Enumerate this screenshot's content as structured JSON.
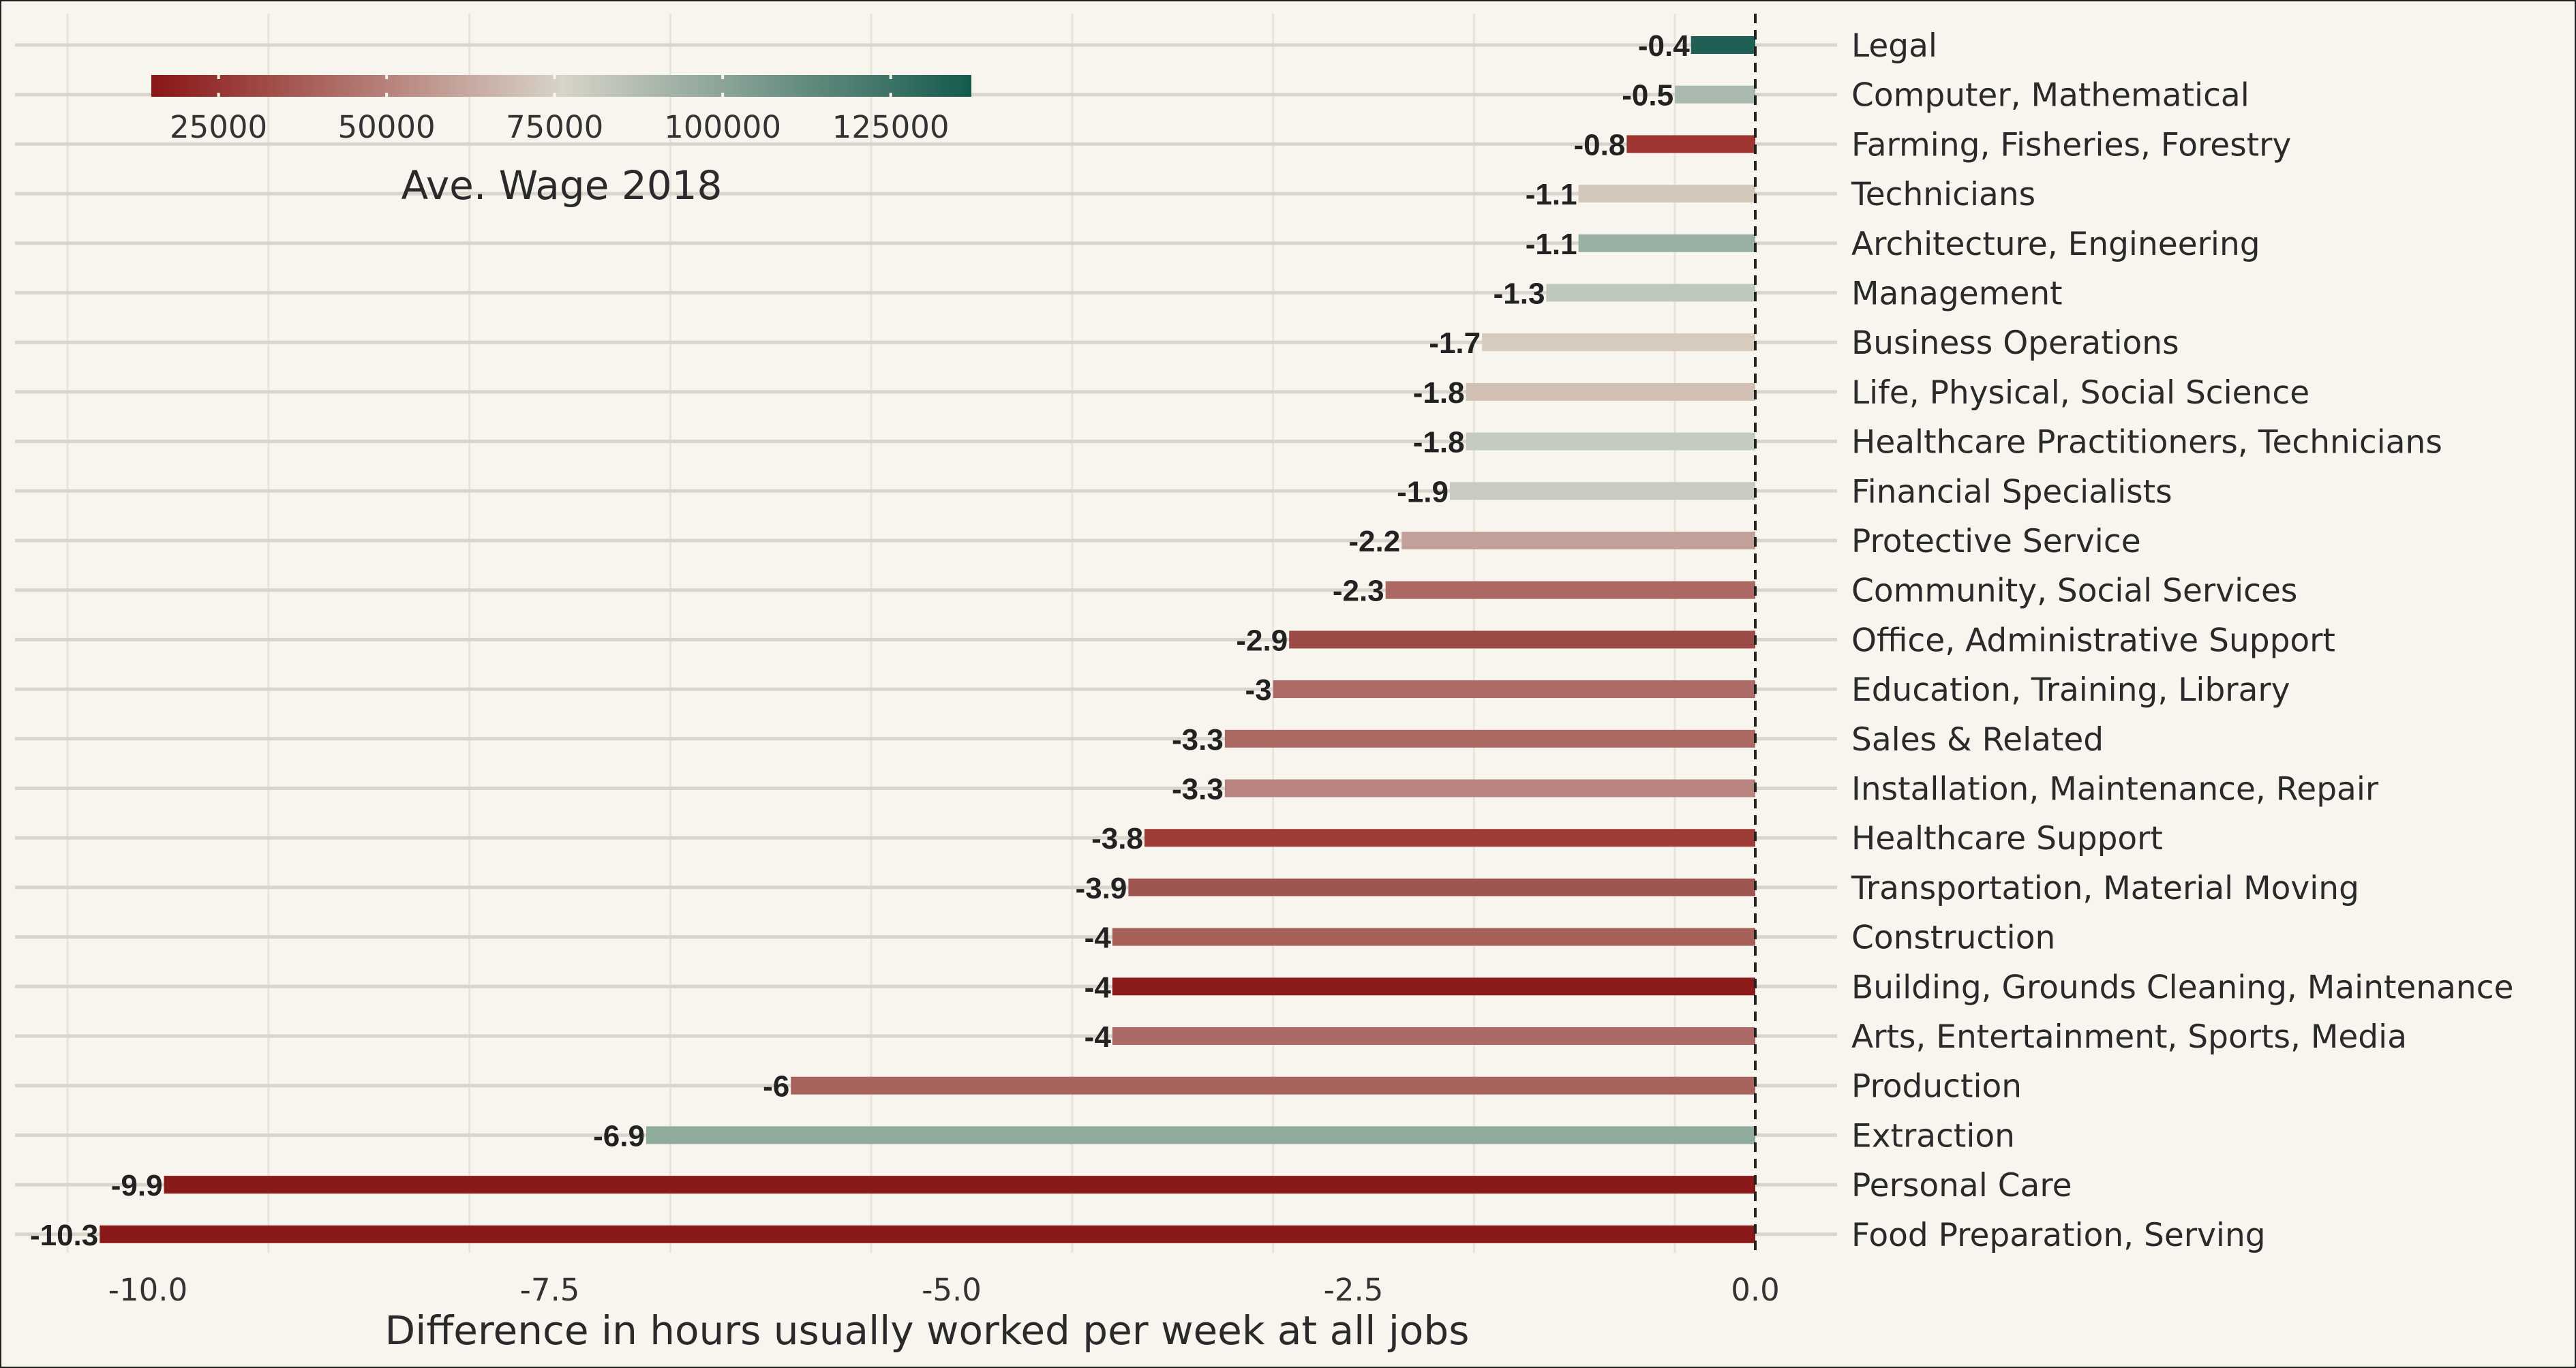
{
  "chart_data": {
    "type": "bar",
    "orientation": "horizontal",
    "title": "",
    "xlabel": "Difference in hours usually worked per week at all jobs",
    "ylabel": "",
    "xlim": [
      -10.5,
      0.4
    ],
    "x_ticks": [
      -10.0,
      -7.5,
      -5.0,
      -2.5,
      0.0
    ],
    "x_tick_labels": [
      "-10.0",
      "-7.5",
      "-5.0",
      "-2.5",
      "0.0"
    ],
    "grid": true,
    "zero_line": "dashed",
    "categories": [
      "Legal",
      "Computer, Mathematical",
      "Farming, Fisheries, Forestry",
      "Technicians",
      "Architecture, Engineering",
      "Management",
      "Business Operations",
      "Life, Physical, Social Science",
      "Healthcare Practitioners, Technicians",
      "Financial Specialists",
      "Protective Service",
      "Community, Social Services",
      "Office, Administrative Support",
      "Education, Training, Library",
      "Sales & Related",
      "Installation, Maintenance, Repair",
      "Healthcare Support",
      "Transportation, Material Moving",
      "Construction",
      "Building, Grounds Cleaning, Maintenance",
      "Arts, Entertainment, Sports, Media",
      "Production",
      "Extraction",
      "Personal Care",
      "Food Preparation, Serving"
    ],
    "values": [
      -0.4,
      -0.5,
      -0.8,
      -1.1,
      -1.1,
      -1.3,
      -1.7,
      -1.8,
      -1.8,
      -1.9,
      -2.2,
      -2.3,
      -2.9,
      -3,
      -3.3,
      -3.3,
      -3.8,
      -3.9,
      -4,
      -4,
      -4,
      -6,
      -6.9,
      -9.9,
      -10.3
    ],
    "value_labels": [
      "-0.4",
      "-0.5",
      "-0.8",
      "-1.1",
      "-1.1",
      "-1.3",
      "-1.7",
      "-1.8",
      "-1.8",
      "-1.9",
      "-2.2",
      "-2.3",
      "-2.9",
      "-3",
      "-3.3",
      "-3.3",
      "-3.8",
      "-3.9",
      "-4",
      "-4",
      "-4",
      "-6",
      "-6.9",
      "-9.9",
      "-10.3"
    ],
    "colors": [
      "#1f5f55",
      "#a9b9ae",
      "#9e3530",
      "#d4c8bb",
      "#9bb0a4",
      "#bfc8bd",
      "#d6cbbd",
      "#d1c0b3",
      "#c5cbc0",
      "#c9cbc0",
      "#c4a09a",
      "#ac6964",
      "#9b4a45",
      "#ac6b66",
      "#ac6964",
      "#b9847f",
      "#9d3c37",
      "#9f5650",
      "#a75f5a",
      "#8c1c1c",
      "#ab6a65",
      "#a9635e",
      "#8fab9b",
      "#8a1a1a",
      "#8a1a1a"
    ],
    "legend": {
      "title": "Ave. Wage 2018",
      "placement": "top-left",
      "colormap": [
        "#8a1515",
        "#d8d4c8",
        "#155a4e"
      ],
      "range": [
        15000,
        137000
      ],
      "tick_values": [
        25000,
        50000,
        75000,
        100000,
        125000
      ],
      "tick_labels": [
        "25000",
        "50000",
        "75000",
        "100000",
        "125000"
      ]
    }
  }
}
